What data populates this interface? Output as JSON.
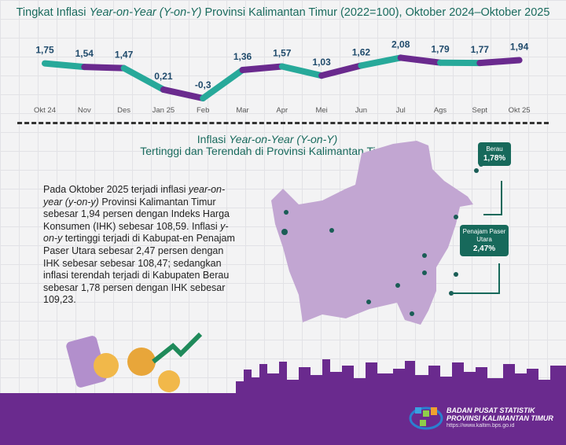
{
  "title": {
    "prefix": "Tingkat Inflasi ",
    "italic": "Year-on-Year (Y-on-Y)",
    "suffix": " Provinsi Kalimantan Timur (2022=100), Oktober 2024–Oktober 2025"
  },
  "chart_data": {
    "type": "line",
    "title": "Tingkat Inflasi Year-on-Year (Y-on-Y) Provinsi Kalimantan Timur (2022=100), Oktober 2024–Oktober 2025",
    "categories": [
      "Okt 24",
      "Nov",
      "Des",
      "Jan 25",
      "Feb",
      "Mar",
      "Apr",
      "Mei",
      "Jun",
      "Jul",
      "Ags",
      "Sept",
      "Okt 25"
    ],
    "values": [
      1.75,
      1.54,
      1.47,
      0.21,
      -0.3,
      1.36,
      1.57,
      1.03,
      1.62,
      2.08,
      1.79,
      1.77,
      1.94
    ],
    "labels": [
      "1,75",
      "1,54",
      "1,47",
      "0,21",
      "-0,3",
      "1,36",
      "1,57",
      "1,03",
      "1,62",
      "2,08",
      "1,79",
      "1,77",
      "1,94"
    ],
    "xlabel": "",
    "ylabel": "",
    "ylim": [
      -0.3,
      2.1
    ],
    "grid": false,
    "colors": {
      "a": "#27a99a",
      "b": "#6a2a8e",
      "label": "#1f4a6b"
    }
  },
  "subtitle": {
    "line1_prefix": "Inflasi ",
    "line1_italic": "Year-on-Year (Y-on-Y)",
    "line2": "Tertinggi dan Terendah di Provinsi Kalimantan Timur"
  },
  "paragraph": {
    "p1": "Pada Oktober 2025 terjadi inflasi ",
    "p2": "year-on-year (y-on-y)",
    "p3": " Provinsi Kalimantan Timur sebesar 1,94 persen dengan Indeks Harga Konsumen (IHK) sebesar 108,59. Inflasi ",
    "p4": "y-on-y",
    "p5": " tertinggi terjadi di Kabupat-en Penajam Paser Utara sebesar 2,47 persen dengan IHK sebesar sebesar 108,47; sedangkan inflasi terendah terjadi di Kabupaten Berau sebesar 1,78 persen dengan IHK sebesar 109,23."
  },
  "callouts": {
    "berau": {
      "name": "Berau",
      "value": "1,78%"
    },
    "ppu": {
      "name": "Penajam Paser Utara",
      "value": "2,47%"
    }
  },
  "footer": {
    "org1": "BADAN PUSAT STATISTIK",
    "org2": "PROVINSI KALIMANTAN TIMUR",
    "url": "https://www.kaltim.bps.go.id"
  }
}
